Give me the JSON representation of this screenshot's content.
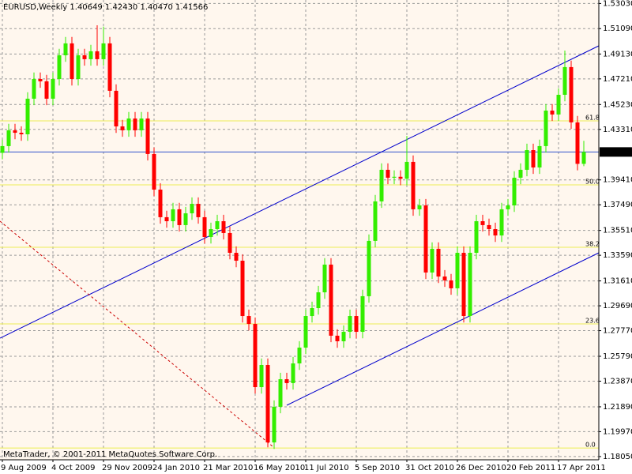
{
  "chart_data": {
    "type": "candlestick",
    "title": "EURUSD,Weekly  1.40649 1.42430 1.40470 1.41566",
    "footer": "MetaTrader, © 2001-2011 MetaQuotes Software Corp.",
    "up_color": "#33ee00",
    "down_color": "#ff0000",
    "grid": true,
    "ylim": [
      1.178,
      1.533
    ],
    "yticks": [
      {
        "value": 1.5303,
        "label": "1.53030"
      },
      {
        "value": 1.5109,
        "label": "1.51090"
      },
      {
        "value": 1.4913,
        "label": "1.49130"
      },
      {
        "value": 1.4721,
        "label": "1.47210"
      },
      {
        "value": 1.4523,
        "label": "1.45230"
      },
      {
        "value": 1.4331,
        "label": "1.43310"
      },
      {
        "value": 1.3941,
        "label": "1.39410"
      },
      {
        "value": 1.3749,
        "label": "1.37490"
      },
      {
        "value": 1.3551,
        "label": "1.35510"
      },
      {
        "value": 1.3359,
        "label": "1.33590"
      },
      {
        "value": 1.3161,
        "label": "1.31610"
      },
      {
        "value": 1.2969,
        "label": "1.29690"
      },
      {
        "value": 1.2777,
        "label": "1.27770"
      },
      {
        "value": 1.2579,
        "label": "1.25790"
      },
      {
        "value": 1.2387,
        "label": "1.23870"
      },
      {
        "value": 1.2189,
        "label": "1.21890"
      },
      {
        "value": 1.1997,
        "label": "1.19970"
      },
      {
        "value": 1.1805,
        "label": "1.18050"
      }
    ],
    "current_price": 1.41566,
    "fib_levels": [
      {
        "label": "61.8",
        "price": 1.4397
      },
      {
        "label": "50.0",
        "price": 1.3903
      },
      {
        "label": "38.2",
        "price": 1.3421
      },
      {
        "label": "23.6",
        "price": 1.2829
      },
      {
        "label": "0.0",
        "price": 1.1871
      }
    ],
    "categories": [
      "9 Aug 2009",
      null,
      null,
      null,
      null,
      null,
      null,
      null,
      "4 Oct 2009",
      null,
      null,
      null,
      null,
      null,
      null,
      null,
      "29 Nov 2009",
      null,
      null,
      null,
      null,
      null,
      null,
      null,
      "24 Jan 2010",
      null,
      null,
      null,
      null,
      null,
      null,
      null,
      "21 Mar 2010",
      null,
      null,
      null,
      null,
      null,
      null,
      null,
      "16 May 2010",
      null,
      null,
      null,
      null,
      null,
      null,
      null,
      "11 Jul 2010",
      null,
      null,
      null,
      null,
      null,
      null,
      null,
      "5 Sep 2010",
      null,
      null,
      null,
      null,
      null,
      null,
      null,
      "31 Oct 2010",
      null,
      null,
      null,
      null,
      null,
      null,
      null,
      "26 Dec 2010",
      null,
      null,
      null,
      null,
      null,
      null,
      null,
      "20 Feb 2011",
      null,
      null,
      null,
      null,
      null,
      null,
      null,
      "17 Apr 2011",
      null,
      null,
      null,
      null
    ],
    "open": [
      1.415,
      1.4202,
      1.4324,
      1.4305,
      1.4293,
      1.4568,
      1.472,
      1.4702,
      1.4568,
      1.472,
      1.4903,
      1.4995,
      1.472,
      1.4903,
      1.4873,
      1.4934,
      1.4873,
      1.4995,
      1.4629,
      1.4354,
      1.4324,
      1.4415,
      1.4324,
      1.4415,
      1.4141,
      1.3866,
      1.3653,
      1.3622,
      1.3714,
      1.3592,
      1.3683,
      1.3756,
      1.3653,
      1.35,
      1.3561,
      1.3622,
      1.3531,
      1.3378,
      1.3317,
      1.289,
      1.2829,
      1.2341,
      1.2512,
      1.1914,
      1.2189,
      1.2402,
      1.2372,
      1.2524,
      1.2646,
      1.289,
      1.2951,
      1.3073,
      1.3287,
      1.2738,
      1.2695,
      1.2768,
      1.289,
      1.2768,
      1.3043,
      1.347,
      1.3775,
      1.4019,
      1.3958,
      1.3965,
      1.395,
      1.408,
      1.3714,
      1.3744,
      1.3226,
      1.3409,
      1.3195,
      1.3165,
      1.3104,
      1.3378,
      1.289,
      1.3378,
      1.3622,
      1.3592,
      1.3561,
      1.3512,
      1.3714,
      1.3744,
      1.3958,
      1.4019,
      1.4171,
      1.4037,
      1.4202,
      1.4476,
      1.4446,
      1.4598,
      1.4812,
      1.4385,
      1.40649
    ],
    "high": [
      1.4252,
      1.4374,
      1.4374,
      1.4355,
      1.4618,
      1.477,
      1.477,
      1.4752,
      1.477,
      1.4953,
      1.5045,
      1.5045,
      1.4953,
      1.4953,
      1.4984,
      1.5135,
      1.5125,
      1.5045,
      1.4679,
      1.4404,
      1.4465,
      1.4465,
      1.4465,
      1.4465,
      1.4191,
      1.3916,
      1.3703,
      1.3764,
      1.3764,
      1.3733,
      1.3806,
      1.3806,
      1.3703,
      1.3611,
      1.3672,
      1.3672,
      1.3581,
      1.3428,
      1.3367,
      1.294,
      1.2879,
      1.2562,
      1.2562,
      1.2239,
      1.2452,
      1.2452,
      1.2574,
      1.2696,
      1.294,
      1.3001,
      1.3123,
      1.3337,
      1.3337,
      1.2788,
      1.2818,
      1.294,
      1.294,
      1.3093,
      1.352,
      1.3825,
      1.4069,
      1.4069,
      1.4015,
      1.4015,
      1.428,
      1.413,
      1.3794,
      1.3794,
      1.3459,
      1.3459,
      1.3245,
      1.3215,
      1.3428,
      1.3428,
      1.3428,
      1.3672,
      1.3672,
      1.3642,
      1.3611,
      1.3764,
      1.3794,
      1.4008,
      1.4069,
      1.4221,
      1.4221,
      1.4252,
      1.4526,
      1.4526,
      1.4648,
      1.494,
      1.4862,
      1.4435,
      1.4243
    ],
    "low": [
      1.41,
      1.4152,
      1.4255,
      1.4243,
      1.4243,
      1.4518,
      1.4652,
      1.4518,
      1.4518,
      1.467,
      1.4853,
      1.467,
      1.467,
      1.4823,
      1.4823,
      1.4823,
      1.4823,
      1.4579,
      1.4304,
      1.4274,
      1.4274,
      1.4274,
      1.4274,
      1.4091,
      1.3816,
      1.3603,
      1.3572,
      1.3572,
      1.3542,
      1.3542,
      1.3633,
      1.3603,
      1.345,
      1.345,
      1.3511,
      1.3481,
      1.3328,
      1.3267,
      1.284,
      1.2779,
      1.2291,
      1.2291,
      1.1876,
      1.1864,
      1.2139,
      1.2322,
      1.2322,
      1.2474,
      1.2596,
      1.284,
      1.2901,
      1.3023,
      1.2688,
      1.2645,
      1.2645,
      1.2718,
      1.2718,
      1.2718,
      1.2993,
      1.342,
      1.3725,
      1.3908,
      1.3908,
      1.39,
      1.39,
      1.3664,
      1.3664,
      1.3176,
      1.3176,
      1.3145,
      1.3115,
      1.3054,
      1.3054,
      1.284,
      1.284,
      1.3328,
      1.3542,
      1.3511,
      1.3462,
      1.3462,
      1.3664,
      1.3694,
      1.3908,
      1.3969,
      1.3987,
      1.3987,
      1.4152,
      1.4396,
      1.4396,
      1.4548,
      1.4335,
      1.4015,
      1.4047
    ],
    "close": [
      1.4202,
      1.4324,
      1.4305,
      1.4293,
      1.4568,
      1.472,
      1.4702,
      1.4568,
      1.472,
      1.4903,
      1.4995,
      1.472,
      1.4903,
      1.4873,
      1.4934,
      1.4873,
      1.4995,
      1.4629,
      1.4354,
      1.4324,
      1.4415,
      1.4324,
      1.4415,
      1.4141,
      1.3866,
      1.3653,
      1.3622,
      1.3714,
      1.3592,
      1.3683,
      1.3756,
      1.3653,
      1.35,
      1.3561,
      1.3622,
      1.3531,
      1.3378,
      1.3317,
      1.289,
      1.2829,
      1.2341,
      1.2512,
      1.1914,
      1.2189,
      1.2402,
      1.2372,
      1.2524,
      1.2646,
      1.289,
      1.2951,
      1.3073,
      1.3287,
      1.2738,
      1.2695,
      1.2768,
      1.289,
      1.2768,
      1.3043,
      1.347,
      1.3775,
      1.4019,
      1.3958,
      1.3965,
      1.395,
      1.408,
      1.3714,
      1.3744,
      1.3226,
      1.3409,
      1.3195,
      1.3165,
      1.3104,
      1.3378,
      1.289,
      1.3378,
      1.3622,
      1.3592,
      1.3561,
      1.3512,
      1.3714,
      1.3744,
      1.3958,
      1.4019,
      1.4171,
      1.4037,
      1.4202,
      1.4476,
      1.4446,
      1.4598,
      1.4812,
      1.4385,
      1.4065,
      1.41566
    ]
  }
}
